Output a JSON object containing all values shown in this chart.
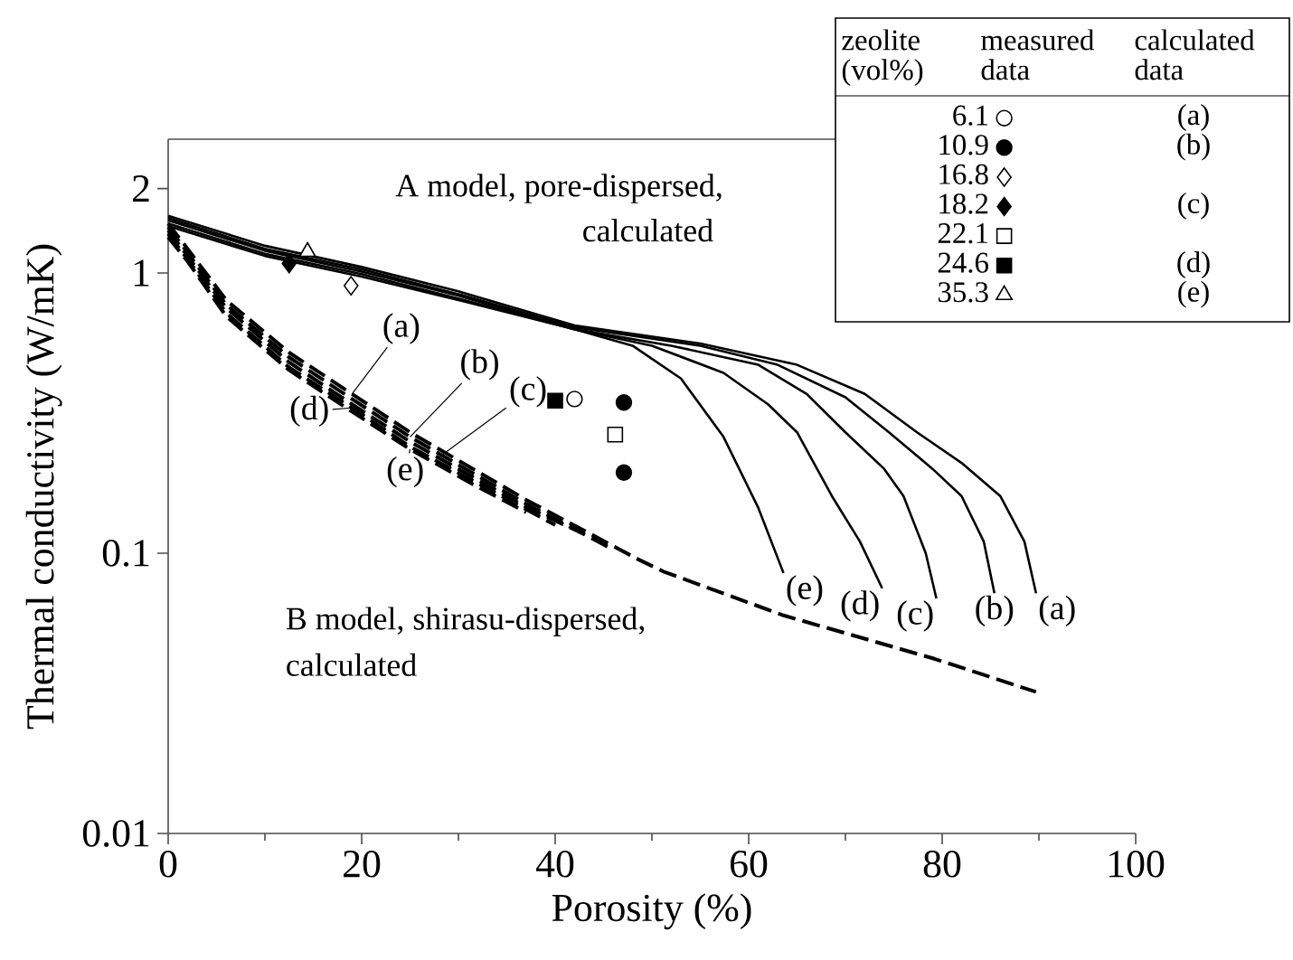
{
  "chart_data": {
    "type": "line",
    "xlabel": "Porosity (%)",
    "ylabel": "Thermal conductivity (W/mK)",
    "log": "y",
    "xlim": [
      0,
      100
    ],
    "ylim": [
      0.01,
      3
    ],
    "xticks": [
      0,
      20,
      40,
      60,
      80,
      100
    ],
    "yticks": [
      0.01,
      0.1,
      1,
      2
    ],
    "legend": "top right",
    "legend_title": "zeolite (vol%)",
    "annotations": [
      "A model, pore-dispersed,",
      "calculated",
      "B model, shirasu-dispersed,",
      "calculated",
      "measured data",
      "calculated data",
      {
        "text": "(a)",
        "x": 19,
        "y": 0.37
      },
      {
        "text": "(b)",
        "x": 25,
        "y": 0.26
      },
      {
        "text": "(c)",
        "x": 28,
        "y": 0.22
      },
      {
        "text": "(d)",
        "x": 19,
        "y": 0.33
      },
      {
        "text": "(e)",
        "x": 25,
        "y": 0.235
      }
    ],
    "series": [
      {
        "name": "(a)",
        "line_style": "solid",
        "color": "#000000",
        "x": [
          0,
          10,
          20,
          30,
          42,
          55,
          65,
          72,
          77.4,
          82,
          86,
          88.5,
          89.7
        ],
        "values": [
          1.6,
          1.25,
          1.05,
          0.86,
          0.65,
          0.56,
          0.47,
          0.37,
          0.27,
          0.21,
          0.16,
          0.11,
          0.072
        ]
      },
      {
        "name": "(b)",
        "line_style": "solid",
        "color": "#000000",
        "x": [
          0,
          10,
          20,
          30,
          42,
          55,
          63,
          70,
          74.5,
          79,
          82,
          84.3,
          85.4
        ],
        "values": [
          1.57,
          1.22,
          1.03,
          0.84,
          0.64,
          0.55,
          0.47,
          0.36,
          0.27,
          0.2,
          0.16,
          0.11,
          0.072
        ]
      },
      {
        "name": "(c)",
        "line_style": "solid",
        "color": "#000000",
        "x": [
          0,
          10,
          20,
          30,
          42,
          52,
          61,
          66,
          70,
          74,
          76,
          78.3,
          79.4
        ],
        "values": [
          1.54,
          1.2,
          1.01,
          0.83,
          0.63,
          0.55,
          0.47,
          0.37,
          0.27,
          0.2,
          0.16,
          0.1,
          0.069
        ]
      },
      {
        "name": "(d)",
        "line_style": "solid",
        "color": "#000000",
        "x": [
          0,
          10,
          20,
          30,
          42,
          50,
          57.4,
          62,
          65,
          68.6,
          71.5,
          73.8
        ],
        "values": [
          1.5,
          1.17,
          0.99,
          0.81,
          0.63,
          0.55,
          0.44,
          0.34,
          0.27,
          0.16,
          0.11,
          0.075
        ]
      },
      {
        "name": "(e)",
        "line_style": "solid",
        "color": "#000000",
        "x": [
          0,
          10,
          20,
          30,
          42,
          48,
          53,
          57.4,
          61,
          63.6
        ],
        "values": [
          1.47,
          1.15,
          0.97,
          0.8,
          0.63,
          0.55,
          0.42,
          0.26,
          0.145,
          0.085
        ]
      },
      {
        "line_style": "dashed",
        "color": "#000000",
        "x": [
          0,
          2,
          6,
          12.5,
          19,
          25,
          37,
          48.6,
          51.2,
          63.6,
          79.2,
          89.7
        ],
        "values": [
          1.5,
          1.22,
          0.8,
          0.52,
          0.37,
          0.27,
          0.155,
          0.095,
          0.086,
          0.06,
          0.042,
          0.032
        ]
      },
      {
        "line_style": "dashed",
        "color": "#000000",
        "x": [
          0,
          2,
          6,
          12.5,
          19,
          25,
          37,
          46
        ],
        "values": [
          1.46,
          1.18,
          0.77,
          0.5,
          0.355,
          0.26,
          0.15,
          0.103
        ]
      },
      {
        "line_style": "dashed",
        "color": "#000000",
        "x": [
          0,
          2,
          6,
          12.5,
          19,
          25,
          37,
          43
        ],
        "values": [
          1.42,
          1.15,
          0.75,
          0.48,
          0.34,
          0.25,
          0.146,
          0.117
        ]
      },
      {
        "line_style": "dashed",
        "color": "#000000",
        "x": [
          0,
          2,
          6,
          12.5,
          19,
          25,
          33,
          40
        ],
        "values": [
          1.38,
          1.12,
          0.72,
          0.46,
          0.33,
          0.24,
          0.17,
          0.126
        ]
      },
      {
        "line_style": "dashed",
        "color": "#000000",
        "x": [
          0,
          2,
          6,
          12.5,
          19,
          25,
          31,
          37
        ],
        "values": [
          1.34,
          1.1,
          0.7,
          0.45,
          0.32,
          0.235,
          0.18,
          0.14
        ]
      },
      {
        "name": "6.1",
        "type": "scatter",
        "marker": "circle",
        "color": "#000000",
        "x": [
          42
        ],
        "values": [
          0.355
        ]
      },
      {
        "name": "10.9",
        "type": "scatter",
        "marker": "circle",
        "color": "#000000",
        "x": [
          47.1,
          47.1
        ],
        "values": [
          0.345,
          0.194
        ]
      },
      {
        "name": "16.8",
        "type": "scatter",
        "marker": "diamond",
        "color": "#000000",
        "x": [
          18.9
        ],
        "values": [
          0.9
        ]
      },
      {
        "name": "18.2",
        "type": "scatter",
        "marker": "diamond",
        "color": "#000000",
        "x": [
          12.5
        ],
        "values": [
          1.08
        ]
      },
      {
        "name": "22.1",
        "type": "scatter",
        "marker": "square",
        "color": "#000000",
        "x": [
          46.2
        ],
        "values": [
          0.265
        ]
      },
      {
        "name": "24.6",
        "type": "scatter",
        "marker": "square",
        "color": "#000000",
        "x": [
          40
        ],
        "values": [
          0.35
        ]
      },
      {
        "name": "35.3",
        "type": "scatter",
        "marker": "triangle",
        "color": "#000000",
        "x": [
          14.4
        ],
        "values": [
          1.19
        ]
      }
    ]
  }
}
